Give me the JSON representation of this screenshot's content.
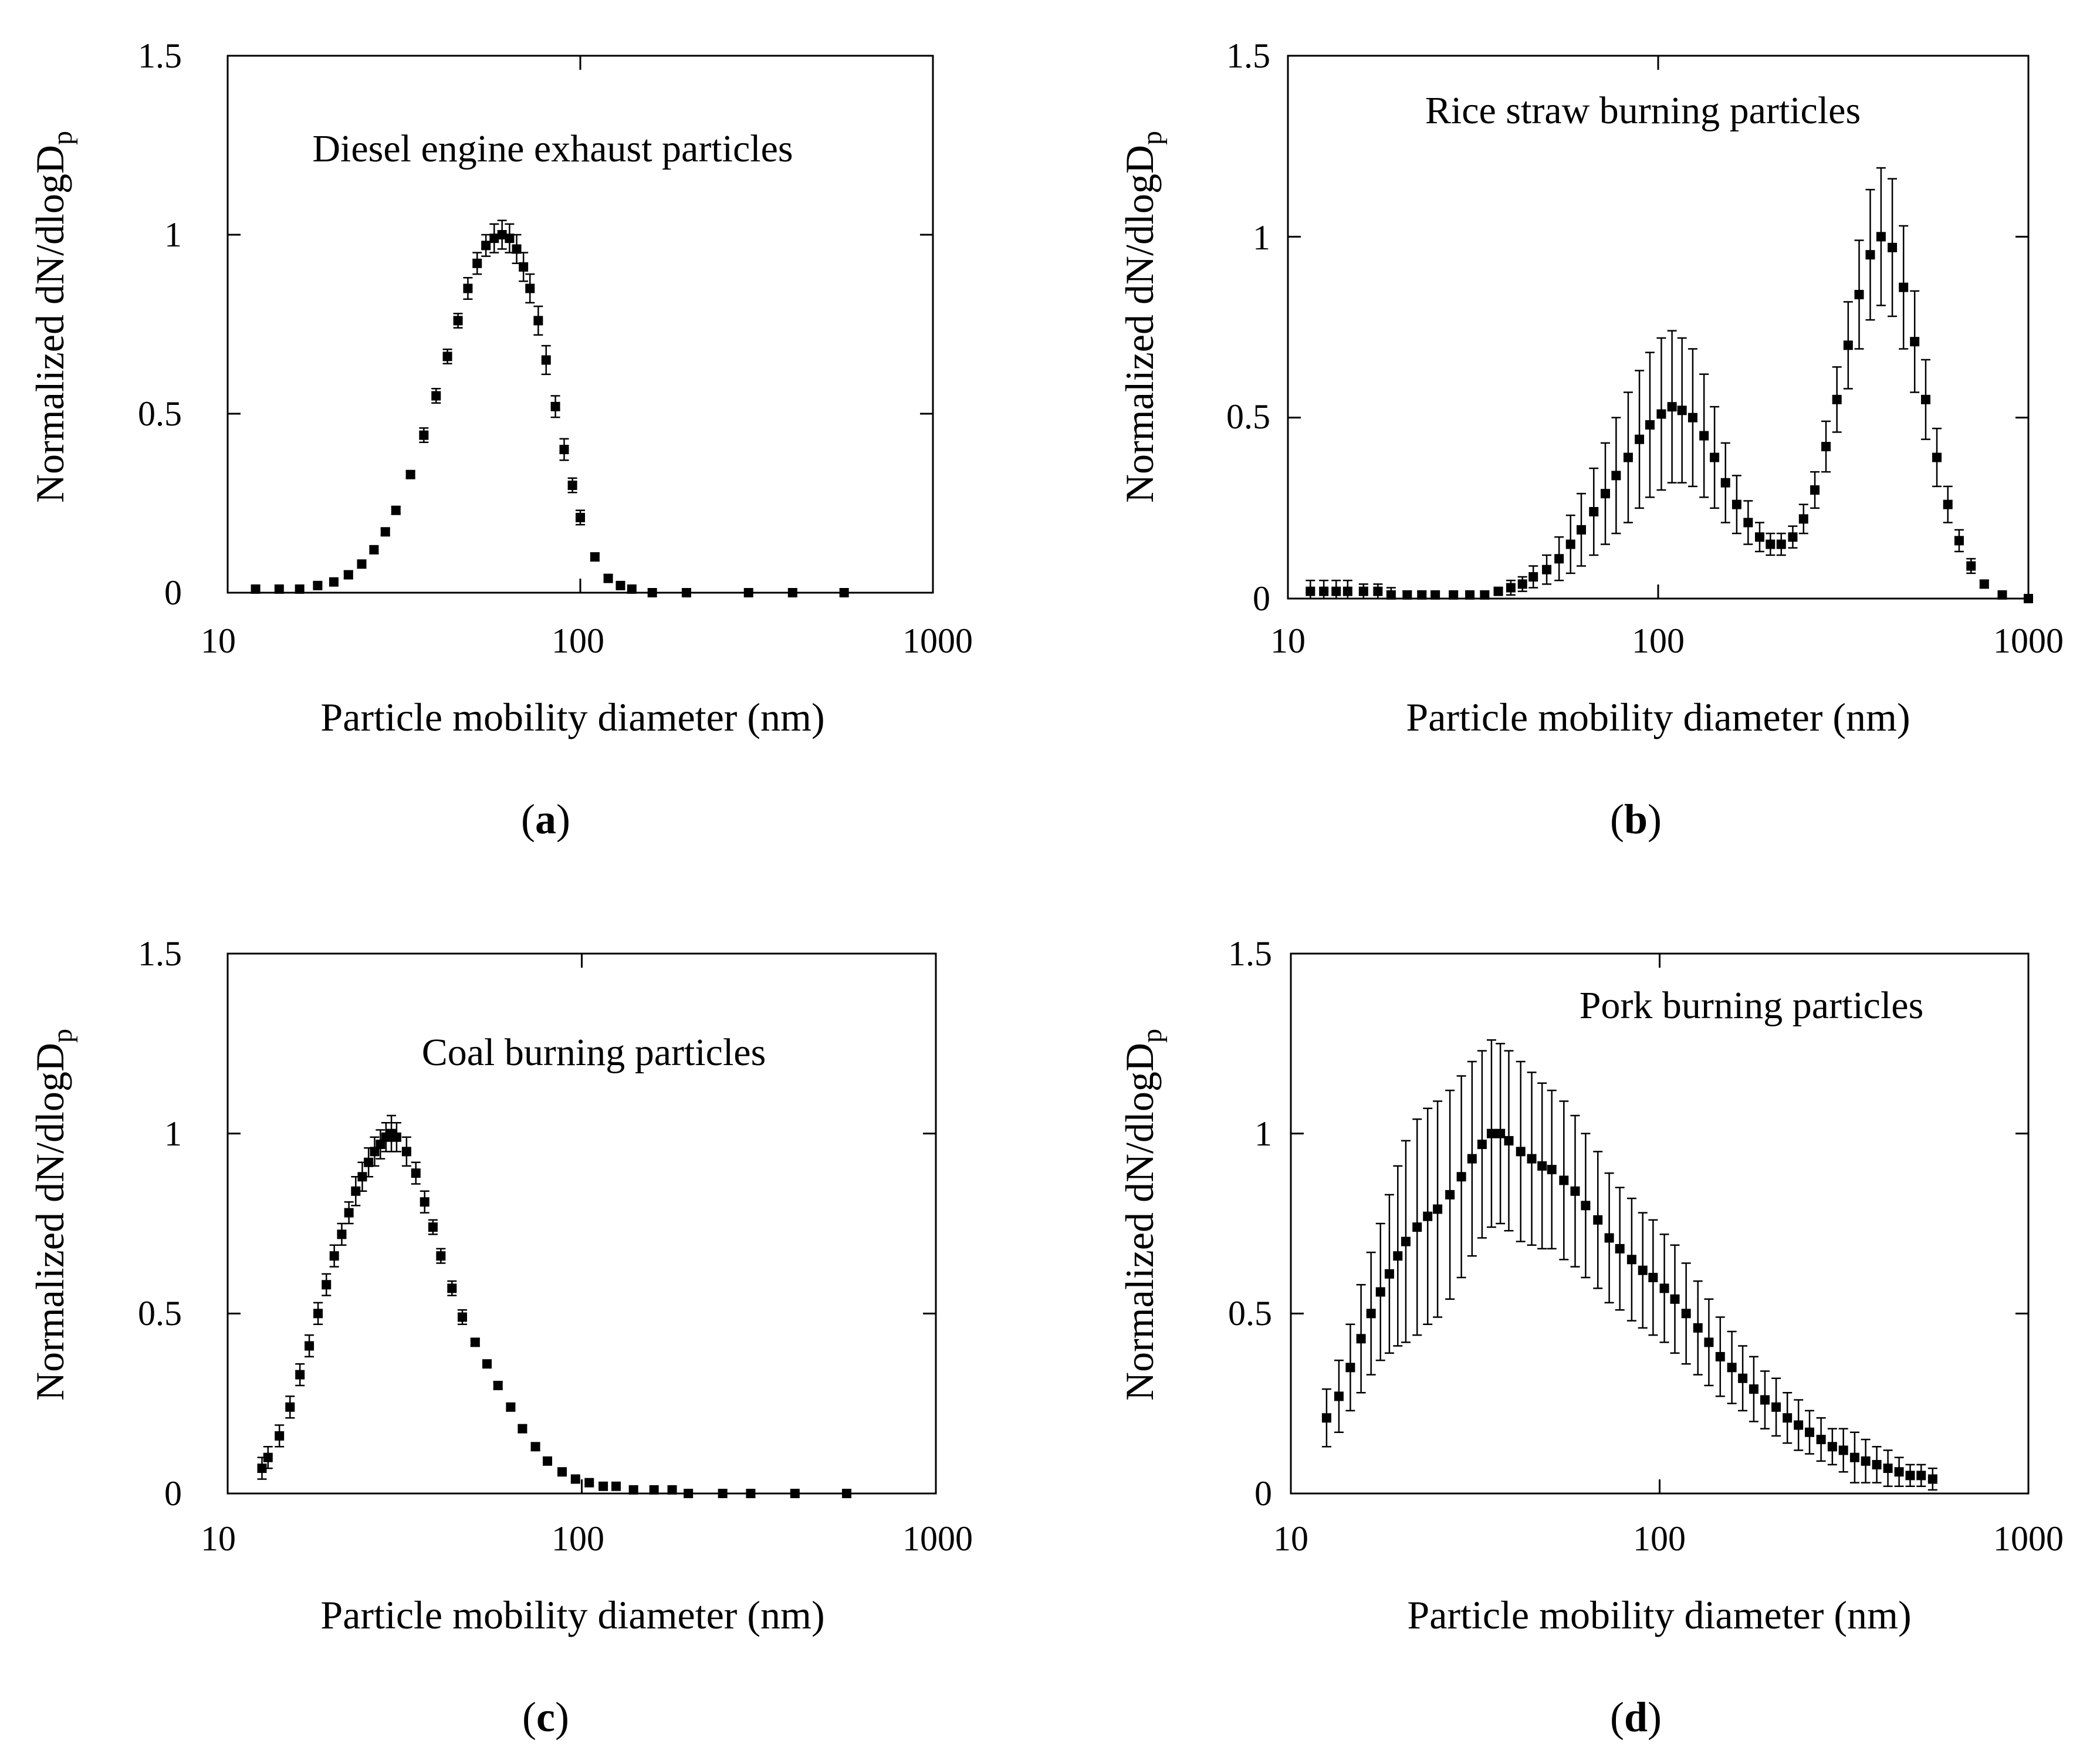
{
  "chart_data": [
    {
      "type": "scatter",
      "panel_label": "a",
      "annotation": "Diesel engine exhaust particles",
      "xlabel": "Particle mobility diameter (nm)",
      "ylabel": "Normalized dN/dlogD",
      "ylabel_subscript": "p",
      "xscale": "log",
      "xlim": [
        10,
        1000
      ],
      "ylim": [
        0,
        1.5
      ],
      "xticks": [
        "10",
        "100",
        "1000"
      ],
      "yticks": [
        "0",
        "0.5",
        "1",
        "1.5"
      ],
      "series": [
        {
          "name": "Diesel engine exhaust particles",
          "x": [
            12,
            14,
            16,
            18,
            20,
            22,
            24,
            26,
            28,
            30,
            33,
            36,
            39,
            42,
            45,
            48,
            51,
            54,
            57,
            60,
            63,
            66,
            69,
            72,
            76,
            80,
            85,
            90,
            95,
            100,
            110,
            120,
            130,
            140,
            160,
            200,
            300,
            400,
            560
          ],
          "y": [
            0.01,
            0.01,
            0.01,
            0.02,
            0.03,
            0.05,
            0.08,
            0.12,
            0.17,
            0.23,
            0.33,
            0.44,
            0.55,
            0.66,
            0.76,
            0.85,
            0.92,
            0.97,
            0.99,
            1.0,
            0.99,
            0.96,
            0.91,
            0.85,
            0.76,
            0.65,
            0.52,
            0.4,
            0.3,
            0.21,
            0.1,
            0.04,
            0.02,
            0.01,
            0.0,
            0.0,
            0.0,
            0.0,
            0.0
          ],
          "err": [
            0.0,
            0.0,
            0.0,
            0.0,
            0.0,
            0.01,
            0.01,
            0.01,
            0.01,
            0.01,
            0.01,
            0.02,
            0.02,
            0.02,
            0.02,
            0.03,
            0.03,
            0.03,
            0.04,
            0.04,
            0.04,
            0.04,
            0.04,
            0.04,
            0.04,
            0.04,
            0.03,
            0.03,
            0.02,
            0.02,
            0.01,
            0.01,
            0.0,
            0.0,
            0.0,
            0.0,
            0.0,
            0.0,
            0.0
          ]
        }
      ]
    },
    {
      "type": "scatter",
      "panel_label": "b",
      "annotation": "Rice straw burning particles",
      "xlabel": "Particle mobility diameter (nm)",
      "ylabel": "Normalized dN/dlogD",
      "ylabel_subscript": "p",
      "xscale": "log",
      "xlim": [
        10,
        1000
      ],
      "ylim": [
        0,
        1.5
      ],
      "xticks": [
        "10",
        "100",
        "1000"
      ],
      "yticks": [
        "0",
        "0.5",
        "1",
        "1.5"
      ],
      "series": [
        {
          "name": "Rice straw burning particles",
          "x": [
            11.5,
            12.5,
            13.5,
            14.5,
            16,
            17.5,
            19,
            21,
            23,
            25,
            28,
            31,
            34,
            37,
            40,
            43,
            46,
            50,
            54,
            58,
            62,
            67,
            72,
            77,
            83,
            89,
            95,
            102,
            109,
            116,
            124,
            133,
            142,
            152,
            163,
            175,
            188,
            201,
            215,
            231,
            247,
            265,
            284,
            304,
            326,
            349,
            374,
            400,
            429,
            460,
            493,
            528,
            566,
            606,
            650,
            700,
            760,
            850,
            1000
          ],
          "y": [
            0.02,
            0.02,
            0.02,
            0.02,
            0.02,
            0.02,
            0.01,
            0.01,
            0.01,
            0.01,
            0.01,
            0.01,
            0.01,
            0.02,
            0.03,
            0.04,
            0.06,
            0.08,
            0.11,
            0.15,
            0.19,
            0.24,
            0.29,
            0.34,
            0.39,
            0.44,
            0.48,
            0.51,
            0.53,
            0.52,
            0.5,
            0.45,
            0.39,
            0.32,
            0.26,
            0.21,
            0.17,
            0.15,
            0.15,
            0.17,
            0.22,
            0.3,
            0.42,
            0.55,
            0.7,
            0.84,
            0.95,
            1.0,
            0.97,
            0.86,
            0.71,
            0.55,
            0.39,
            0.26,
            0.16,
            0.09,
            0.04,
            0.01,
            0.0
          ],
          "err": [
            0.03,
            0.03,
            0.03,
            0.03,
            0.02,
            0.02,
            0.02,
            0.01,
            0.01,
            0.01,
            0.01,
            0.01,
            0.01,
            0.01,
            0.02,
            0.02,
            0.03,
            0.04,
            0.06,
            0.08,
            0.1,
            0.12,
            0.14,
            0.16,
            0.18,
            0.19,
            0.2,
            0.21,
            0.21,
            0.2,
            0.19,
            0.17,
            0.14,
            0.11,
            0.08,
            0.06,
            0.04,
            0.03,
            0.03,
            0.03,
            0.04,
            0.05,
            0.07,
            0.09,
            0.12,
            0.15,
            0.18,
            0.19,
            0.19,
            0.17,
            0.14,
            0.11,
            0.08,
            0.05,
            0.03,
            0.02,
            0.01,
            0.0,
            0.0
          ]
        }
      ]
    },
    {
      "type": "scatter",
      "panel_label": "c",
      "annotation": "Coal burning particles",
      "xlabel": "Particle mobility diameter (nm)",
      "ylabel": "Normalized dN/dlogD",
      "ylabel_subscript": "p",
      "xscale": "log",
      "xlim": [
        10,
        1000
      ],
      "ylim": [
        0,
        1.5
      ],
      "xticks": [
        "10",
        "100",
        "1000"
      ],
      "yticks": [
        "0",
        "0.5",
        "1",
        "1.5"
      ],
      "series": [
        {
          "name": "Coal burning particles",
          "x": [
            12.5,
            13,
            14,
            15,
            16,
            17,
            18,
            19,
            20,
            21,
            22,
            23,
            24,
            25,
            26,
            27,
            28,
            29,
            30,
            32,
            34,
            36,
            38,
            40,
            43,
            46,
            50,
            54,
            58,
            63,
            68,
            74,
            80,
            88,
            96,
            105,
            115,
            125,
            140,
            160,
            180,
            200,
            250,
            300,
            400,
            560
          ],
          "y": [
            0.07,
            0.1,
            0.16,
            0.24,
            0.33,
            0.41,
            0.5,
            0.58,
            0.66,
            0.72,
            0.78,
            0.84,
            0.88,
            0.92,
            0.95,
            0.97,
            0.99,
            1.0,
            0.99,
            0.95,
            0.89,
            0.81,
            0.74,
            0.66,
            0.57,
            0.49,
            0.42,
            0.36,
            0.3,
            0.24,
            0.18,
            0.13,
            0.09,
            0.06,
            0.04,
            0.03,
            0.02,
            0.02,
            0.01,
            0.01,
            0.01,
            0.0,
            0.0,
            0.0,
            0.0,
            0.0
          ],
          "err": [
            0.03,
            0.03,
            0.03,
            0.03,
            0.03,
            0.03,
            0.03,
            0.03,
            0.03,
            0.03,
            0.03,
            0.04,
            0.04,
            0.04,
            0.04,
            0.04,
            0.04,
            0.05,
            0.04,
            0.04,
            0.03,
            0.03,
            0.02,
            0.02,
            0.02,
            0.02,
            0.01,
            0.01,
            0.01,
            0.01,
            0.01,
            0.01,
            0.01,
            0.0,
            0.0,
            0.0,
            0.0,
            0.0,
            0.0,
            0.0,
            0.0,
            0.0,
            0.0,
            0.0,
            0.0,
            0.0
          ]
        }
      ]
    },
    {
      "type": "scatter",
      "panel_label": "d",
      "annotation": "Pork burning particles",
      "xlabel": "Particle mobility diameter (nm)",
      "ylabel": "Normalized dN/dlogD",
      "ylabel_subscript": "p",
      "xscale": "log",
      "xlim": [
        10,
        1000
      ],
      "ylim": [
        0,
        1.5
      ],
      "xticks": [
        "10",
        "100",
        "1000"
      ],
      "yticks": [
        "0",
        "0.5",
        "1",
        "1.5"
      ],
      "series": [
        {
          "name": "Pork burning particles",
          "x": [
            12.5,
            13.5,
            14.5,
            15.5,
            16.5,
            17.5,
            18.5,
            19.5,
            20.5,
            22,
            23.5,
            25,
            27,
            29,
            31,
            33,
            35,
            37,
            39,
            42,
            45,
            48,
            51,
            55,
            59,
            63,
            68,
            73,
            78,
            84,
            90,
            96,
            103,
            110,
            118,
            127,
            136,
            146,
            157,
            168,
            180,
            193,
            207,
            222,
            238,
            255,
            274,
            294,
            315,
            338,
            362,
            388,
            416,
            446,
            478,
            512,
            550
          ],
          "y": [
            0.21,
            0.27,
            0.35,
            0.43,
            0.5,
            0.56,
            0.61,
            0.66,
            0.7,
            0.74,
            0.77,
            0.79,
            0.83,
            0.88,
            0.93,
            0.97,
            1.0,
            1.0,
            0.98,
            0.95,
            0.93,
            0.91,
            0.9,
            0.87,
            0.84,
            0.8,
            0.76,
            0.71,
            0.68,
            0.65,
            0.62,
            0.6,
            0.57,
            0.54,
            0.5,
            0.46,
            0.42,
            0.38,
            0.35,
            0.32,
            0.29,
            0.26,
            0.24,
            0.21,
            0.19,
            0.17,
            0.15,
            0.13,
            0.12,
            0.1,
            0.09,
            0.08,
            0.07,
            0.06,
            0.05,
            0.05,
            0.04
          ],
          "err": [
            0.08,
            0.1,
            0.12,
            0.15,
            0.17,
            0.19,
            0.22,
            0.25,
            0.28,
            0.3,
            0.3,
            0.3,
            0.29,
            0.28,
            0.27,
            0.26,
            0.26,
            0.25,
            0.25,
            0.25,
            0.24,
            0.23,
            0.22,
            0.22,
            0.21,
            0.2,
            0.19,
            0.18,
            0.17,
            0.17,
            0.16,
            0.16,
            0.15,
            0.15,
            0.14,
            0.13,
            0.12,
            0.11,
            0.1,
            0.09,
            0.09,
            0.08,
            0.08,
            0.07,
            0.07,
            0.06,
            0.06,
            0.05,
            0.06,
            0.07,
            0.06,
            0.05,
            0.05,
            0.04,
            0.03,
            0.03,
            0.03
          ]
        }
      ]
    }
  ]
}
